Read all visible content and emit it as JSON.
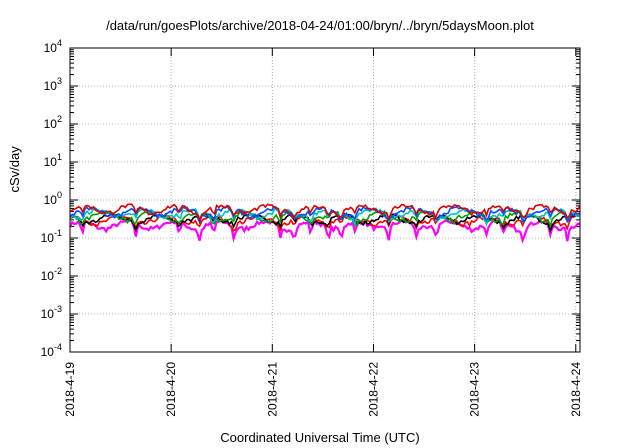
{
  "chart_data": {
    "type": "line",
    "title": "/data/run/goesPlots/archive/2018-04-24/01:00/bryn/../bryn/5daysMoon.plot",
    "xlabel": "Coordinated Universal Time (UTC)",
    "ylabel": "cSv/day",
    "x_ticks": [
      "2018-4-19",
      "2018-4-20",
      "2018-4-21",
      "2018-4-22",
      "2018-4-23",
      "2018-4-24"
    ],
    "x_range": [
      "2018-04-19T00:00",
      "2018-04-24T01:00"
    ],
    "y_scale": "log",
    "ylim": [
      0.0001,
      10000
    ],
    "y_ticks": [
      {
        "base": "10",
        "exp": "4"
      },
      {
        "base": "10",
        "exp": "3"
      },
      {
        "base": "10",
        "exp": "2"
      },
      {
        "base": "10",
        "exp": "1"
      },
      {
        "base": "10",
        "exp": "0"
      },
      {
        "base": "10",
        "exp": "-1"
      },
      {
        "base": "10",
        "exp": "-2"
      },
      {
        "base": "10",
        "exp": "-3"
      },
      {
        "base": "10",
        "exp": "-4"
      }
    ],
    "grid": true,
    "series": [
      {
        "color": "#ff00ff",
        "base": 0.22,
        "dip_depth": 0.55
      },
      {
        "color": "#ff0000",
        "base": 0.3,
        "dip_depth": 0.35
      },
      {
        "color": "#000000",
        "base": 0.33,
        "dip_depth": 0.35
      },
      {
        "color": "#00a000",
        "base": 0.38,
        "dip_depth": 0.35
      },
      {
        "color": "#00c0c0",
        "base": 0.45,
        "dip_depth": 0.35
      },
      {
        "color": "#0050ff",
        "base": 0.5,
        "dip_depth": 0.35
      },
      {
        "color": "#e00000",
        "base": 0.58,
        "dip_depth": 0.35
      }
    ],
    "dips_day": [
      0.12,
      0.65,
      1.08,
      1.28,
      1.42,
      1.62,
      2.08,
      2.22,
      2.38,
      2.55,
      2.68,
      2.82,
      3.15,
      3.42,
      3.62,
      4.12,
      4.28,
      4.48,
      4.75,
      4.92
    ]
  }
}
